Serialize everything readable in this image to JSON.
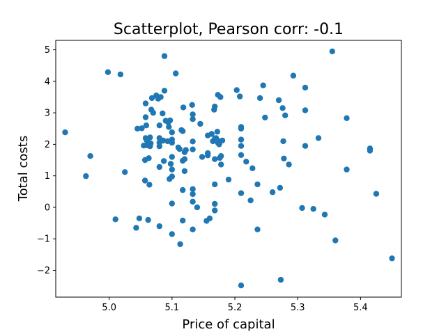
{
  "chart_data": {
    "type": "scatter",
    "title": "Scatterplot, Pearson corr: -0.1",
    "xlabel": "Price of capital",
    "ylabel": "Total costs",
    "xlim": [
      4.915,
      4.465
    ],
    "ylim": [
      -2.85,
      5.3
    ],
    "xlim_note": "",
    "x_ticks": [
      5.0,
      5.1,
      5.2,
      5.3,
      5.4
    ],
    "x_tick_labels": [
      "5.0",
      "5.1",
      "5.2",
      "5.3",
      "5.4"
    ],
    "y_ticks": [
      -2,
      -1,
      0,
      1,
      2,
      3,
      4,
      5
    ],
    "y_tick_labels": [
      "−2",
      "−1",
      "0",
      "1",
      "2",
      "3",
      "4",
      "5"
    ],
    "grid": false,
    "marker_color": "#1f77b4",
    "points": [
      [
        4.93,
        2.38
      ],
      [
        4.963,
        0.99
      ],
      [
        4.97,
        1.63
      ],
      [
        4.998,
        4.29
      ],
      [
        5.01,
        -0.38
      ],
      [
        5.018,
        4.22
      ],
      [
        5.025,
        1.12
      ],
      [
        5.043,
        -0.65
      ],
      [
        5.045,
        2.5
      ],
      [
        5.048,
        -0.35
      ],
      [
        5.052,
        2.51
      ],
      [
        5.055,
        1.96
      ],
      [
        5.057,
        1.5
      ],
      [
        5.057,
        0.85
      ],
      [
        5.058,
        3.3
      ],
      [
        5.058,
        2.86
      ],
      [
        5.058,
        2.2
      ],
      [
        5.059,
        2.6
      ],
      [
        5.06,
        1.97
      ],
      [
        5.06,
        2.12
      ],
      [
        5.062,
        -0.4
      ],
      [
        5.063,
        1.56
      ],
      [
        5.064,
        0.72
      ],
      [
        5.065,
        2.22
      ],
      [
        5.065,
        1.94
      ],
      [
        5.066,
        2.03
      ],
      [
        5.067,
        3.1
      ],
      [
        5.068,
        3.47
      ],
      [
        5.07,
        3.0
      ],
      [
        5.075,
        3.55
      ],
      [
        5.078,
        3.45
      ],
      [
        5.08,
        2.6
      ],
      [
        5.08,
        2.2
      ],
      [
        5.08,
        2.05
      ],
      [
        5.08,
        1.94
      ],
      [
        5.08,
        1.28
      ],
      [
        5.08,
        -0.6
      ],
      [
        5.082,
        3.5
      ],
      [
        5.085,
        2.98
      ],
      [
        5.086,
        2.12
      ],
      [
        5.087,
        1.47
      ],
      [
        5.088,
        4.8
      ],
      [
        5.088,
        3.7
      ],
      [
        5.09,
        2.75
      ],
      [
        5.093,
        2.1
      ],
      [
        5.094,
        2.7
      ],
      [
        5.095,
        2.55
      ],
      [
        5.096,
        0.9
      ],
      [
        5.097,
        2.76
      ],
      [
        5.098,
        1.38
      ],
      [
        5.1,
        2.05
      ],
      [
        5.1,
        2.15
      ],
      [
        5.1,
        2.38
      ],
      [
        5.1,
        1.6
      ],
      [
        5.1,
        1.2
      ],
      [
        5.1,
        0.98
      ],
      [
        5.1,
        0.12
      ],
      [
        5.1,
        -0.85
      ],
      [
        5.106,
        4.25
      ],
      [
        5.11,
        1.9
      ],
      [
        5.112,
        1.85
      ],
      [
        5.113,
        -1.17
      ],
      [
        5.115,
        2.45
      ],
      [
        5.117,
        2.42
      ],
      [
        5.117,
        1.48
      ],
      [
        5.117,
        0.55
      ],
      [
        5.117,
        -0.42
      ],
      [
        5.118,
        3.17
      ],
      [
        5.12,
        1.53
      ],
      [
        5.12,
        1.15
      ],
      [
        5.12,
        1.75
      ],
      [
        5.122,
        1.82
      ],
      [
        5.132,
        3.25
      ],
      [
        5.133,
        2.95
      ],
      [
        5.133,
        2.8
      ],
      [
        5.133,
        2.09
      ],
      [
        5.133,
        1.84
      ],
      [
        5.133,
        0.58
      ],
      [
        5.133,
        0.42
      ],
      [
        5.133,
        0.18
      ],
      [
        5.133,
        -0.7
      ],
      [
        5.14,
        0.0
      ],
      [
        5.145,
        2.65
      ],
      [
        5.148,
        1.6
      ],
      [
        5.155,
        -0.43
      ],
      [
        5.157,
        1.65
      ],
      [
        5.157,
        1.72
      ],
      [
        5.157,
        2.28
      ],
      [
        5.16,
        -0.35
      ],
      [
        5.163,
        2.33
      ],
      [
        5.165,
        2.1
      ],
      [
        5.167,
        3.1
      ],
      [
        5.168,
        3.2
      ],
      [
        5.168,
        2.18
      ],
      [
        5.168,
        1.53
      ],
      [
        5.168,
        0.73
      ],
      [
        5.168,
        0.11
      ],
      [
        5.168,
        -0.1
      ],
      [
        5.17,
        2.2
      ],
      [
        5.172,
        2.4
      ],
      [
        5.173,
        2.05
      ],
      [
        5.173,
        3.57
      ],
      [
        5.175,
        2.1
      ],
      [
        5.175,
        2.0
      ],
      [
        5.176,
        1.57
      ],
      [
        5.177,
        3.5
      ],
      [
        5.178,
        1.63
      ],
      [
        5.178,
        1.36
      ],
      [
        5.18,
        2.12
      ],
      [
        5.19,
        0.88
      ],
      [
        5.203,
        3.72
      ],
      [
        5.208,
        3.52
      ],
      [
        5.21,
        2.55
      ],
      [
        5.21,
        2.5
      ],
      [
        5.21,
        2.15
      ],
      [
        5.21,
        1.95
      ],
      [
        5.21,
        1.66
      ],
      [
        5.21,
        0.45
      ],
      [
        5.21,
        -2.48
      ],
      [
        5.218,
        1.45
      ],
      [
        5.225,
        0.22
      ],
      [
        5.228,
        1.24
      ],
      [
        5.236,
        0.73
      ],
      [
        5.236,
        -0.7
      ],
      [
        5.24,
        3.47
      ],
      [
        5.245,
        3.87
      ],
      [
        5.248,
        2.85
      ],
      [
        5.26,
        0.48
      ],
      [
        5.27,
        3.4
      ],
      [
        5.272,
        0.62
      ],
      [
        5.273,
        -2.3
      ],
      [
        5.276,
        3.15
      ],
      [
        5.277,
        2.1
      ],
      [
        5.278,
        1.55
      ],
      [
        5.28,
        2.92
      ],
      [
        5.286,
        1.36
      ],
      [
        5.293,
        4.18
      ],
      [
        5.307,
        -0.02
      ],
      [
        5.312,
        3.8
      ],
      [
        5.312,
        3.08
      ],
      [
        5.312,
        1.95
      ],
      [
        5.325,
        -0.05
      ],
      [
        5.333,
        2.2
      ],
      [
        5.343,
        -0.23
      ],
      [
        5.355,
        4.95
      ],
      [
        5.36,
        -1.05
      ],
      [
        5.378,
        2.83
      ],
      [
        5.378,
        1.2
      ],
      [
        5.415,
        1.87
      ],
      [
        5.415,
        1.8
      ],
      [
        5.425,
        0.43
      ],
      [
        5.45,
        -1.62
      ]
    ]
  }
}
